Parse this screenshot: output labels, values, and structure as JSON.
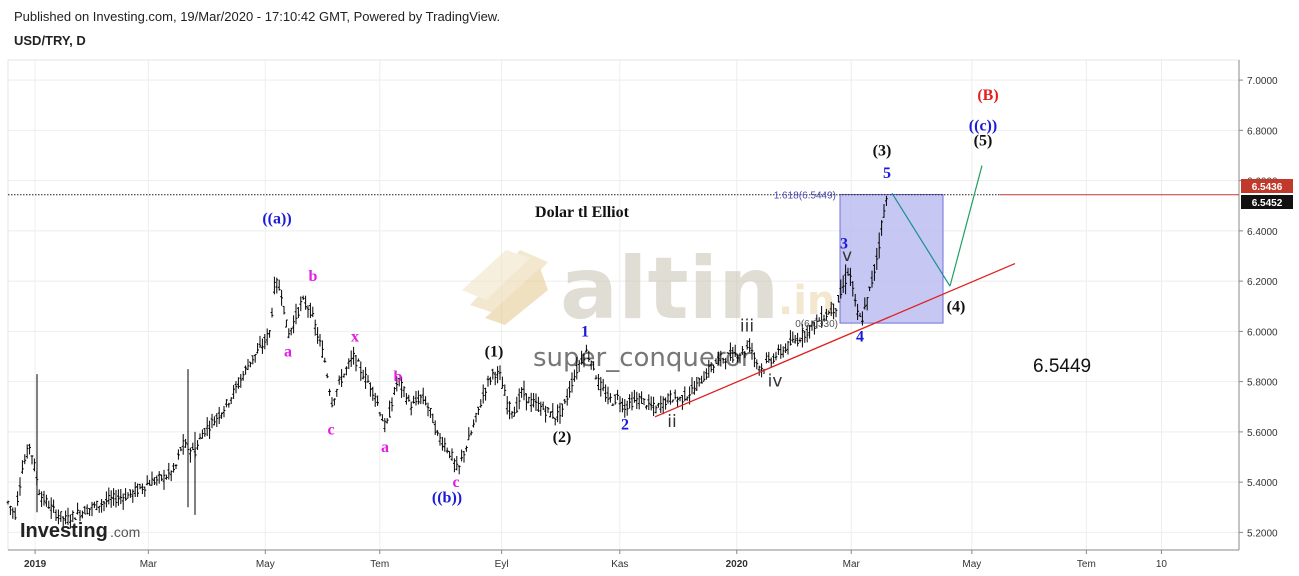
{
  "header": {
    "published": "Published on Investing.com, 19/Mar/2020 - 17:10:42 GMT, Powered by TradingView.",
    "symbol": "USD/TRY, D"
  },
  "branding": {
    "logo_bold": "Investing",
    "logo_suffix": ".com",
    "watermark_main": "altin",
    "watermark_suffix": ".in",
    "watermark_user": "super_conqueror"
  },
  "price_tags": {
    "line_price": "6.5436",
    "last_price": "6.5452",
    "line_color": "#c0392b",
    "last_color": "#111111"
  },
  "chart_data": {
    "type": "candlestick",
    "title": "Dolar tl Elliot",
    "x_ticks": [
      "2019",
      "Mar",
      "May",
      "Tem",
      "Eyl",
      "Kas",
      "2020",
      "Mar",
      "May",
      "Tem",
      "10"
    ],
    "y_ticks": [
      "7.0000",
      "6.8000",
      "6.6000",
      "6.4000",
      "6.2000",
      "6.0000",
      "5.8000",
      "5.6000",
      "5.4000",
      "5.2000"
    ],
    "ylim": [
      5.13,
      7.08
    ],
    "fib_label": "1.618(6.5449)",
    "fib_zero_label": "0(6.0330)",
    "target_value": "6.5449",
    "waypoints": [
      [
        0,
        5.33
      ],
      [
        8,
        5.32
      ],
      [
        15,
        5.27
      ],
      [
        22,
        5.45
      ],
      [
        30,
        5.55
      ],
      [
        40,
        5.35
      ],
      [
        55,
        5.28
      ],
      [
        66,
        5.25
      ],
      [
        80,
        5.28
      ],
      [
        92,
        5.3
      ],
      [
        110,
        5.33
      ],
      [
        130,
        5.35
      ],
      [
        150,
        5.4
      ],
      [
        165,
        5.42
      ],
      [
        175,
        5.45
      ],
      [
        182,
        5.55
      ],
      [
        195,
        5.52
      ],
      [
        203,
        5.6
      ],
      [
        215,
        5.65
      ],
      [
        225,
        5.7
      ],
      [
        237,
        5.78
      ],
      [
        250,
        5.88
      ],
      [
        262,
        5.94
      ],
      [
        270,
        6.0
      ],
      [
        275,
        6.2
      ],
      [
        282,
        6.15
      ],
      [
        288,
        5.98
      ],
      [
        296,
        6.06
      ],
      [
        302,
        6.12
      ],
      [
        310,
        6.09
      ],
      [
        318,
        5.98
      ],
      [
        325,
        5.88
      ],
      [
        332,
        5.72
      ],
      [
        340,
        5.8
      ],
      [
        348,
        5.86
      ],
      [
        354,
        5.9
      ],
      [
        360,
        5.85
      ],
      [
        368,
        5.8
      ],
      [
        375,
        5.75
      ],
      [
        381,
        5.67
      ],
      [
        386,
        5.61
      ],
      [
        392,
        5.72
      ],
      [
        398,
        5.81
      ],
      [
        405,
        5.75
      ],
      [
        412,
        5.7
      ],
      [
        420,
        5.74
      ],
      [
        426,
        5.72
      ],
      [
        432,
        5.66
      ],
      [
        438,
        5.58
      ],
      [
        445,
        5.55
      ],
      [
        452,
        5.5
      ],
      [
        458,
        5.44
      ],
      [
        464,
        5.52
      ],
      [
        470,
        5.58
      ],
      [
        478,
        5.68
      ],
      [
        486,
        5.78
      ],
      [
        494,
        5.84
      ],
      [
        500,
        5.82
      ],
      [
        508,
        5.7
      ],
      [
        515,
        5.68
      ],
      [
        522,
        5.76
      ],
      [
        530,
        5.72
      ],
      [
        540,
        5.7
      ],
      [
        548,
        5.68
      ],
      [
        556,
        5.66
      ],
      [
        564,
        5.7
      ],
      [
        572,
        5.8
      ],
      [
        580,
        5.88
      ],
      [
        586,
        5.92
      ],
      [
        592,
        5.88
      ],
      [
        598,
        5.8
      ],
      [
        605,
        5.75
      ],
      [
        612,
        5.72
      ],
      [
        618,
        5.74
      ],
      [
        624,
        5.7
      ],
      [
        632,
        5.72
      ],
      [
        640,
        5.73
      ],
      [
        648,
        5.71
      ],
      [
        656,
        5.69
      ],
      [
        664,
        5.72
      ],
      [
        672,
        5.74
      ],
      [
        680,
        5.73
      ],
      [
        688,
        5.75
      ],
      [
        696,
        5.78
      ],
      [
        704,
        5.82
      ],
      [
        712,
        5.86
      ],
      [
        720,
        5.89
      ],
      [
        728,
        5.9
      ],
      [
        736,
        5.91
      ],
      [
        744,
        5.92
      ],
      [
        750,
        5.95
      ],
      [
        756,
        5.88
      ],
      [
        762,
        5.85
      ],
      [
        768,
        5.88
      ],
      [
        775,
        5.9
      ],
      [
        782,
        5.92
      ],
      [
        790,
        5.95
      ],
      [
        798,
        5.97
      ],
      [
        806,
        6.0
      ],
      [
        812,
        6.02
      ],
      [
        818,
        6.04
      ],
      [
        824,
        6.06
      ],
      [
        830,
        6.08
      ],
      [
        836,
        6.1
      ],
      [
        842,
        6.16
      ],
      [
        848,
        6.24
      ],
      [
        852,
        6.2
      ],
      [
        856,
        6.08
      ],
      [
        861,
        6.04
      ],
      [
        866,
        6.1
      ],
      [
        872,
        6.2
      ],
      [
        878,
        6.32
      ],
      [
        883,
        6.46
      ],
      [
        887,
        6.53
      ]
    ],
    "wave_labels": [
      {
        "text": "((a))",
        "x": 277,
        "y": 6.43,
        "color": "#1a1adb"
      },
      {
        "text": "a",
        "x": 288,
        "y": 5.9,
        "color": "#e020e0"
      },
      {
        "text": "b",
        "x": 313,
        "y": 6.2,
        "color": "#e020e0"
      },
      {
        "text": "x",
        "x": 355,
        "y": 5.96,
        "color": "#e020e0"
      },
      {
        "text": "c",
        "x": 331,
        "y": 5.59,
        "color": "#e020e0"
      },
      {
        "text": "b",
        "x": 398,
        "y": 5.8,
        "color": "#e020e0"
      },
      {
        "text": "a",
        "x": 385,
        "y": 5.52,
        "color": "#e020e0"
      },
      {
        "text": "c",
        "x": 456,
        "y": 5.38,
        "color": "#e020e0"
      },
      {
        "text": "((b))",
        "x": 447,
        "y": 5.32,
        "color": "#1a1adb"
      },
      {
        "text": "(1)",
        "x": 494,
        "y": 5.9,
        "color": "#111111"
      },
      {
        "text": "(2)",
        "x": 562,
        "y": 5.56,
        "color": "#111111"
      },
      {
        "text": "1",
        "x": 585,
        "y": 5.98,
        "color": "#1a1adb"
      },
      {
        "text": "2",
        "x": 625,
        "y": 5.61,
        "color": "#1a1adb"
      },
      {
        "text": "ii",
        "x": 672,
        "y": 5.62,
        "color": "#333333"
      },
      {
        "text": "iii",
        "x": 747,
        "y": 6.0,
        "color": "#333333"
      },
      {
        "text": "iv",
        "x": 775,
        "y": 5.78,
        "color": "#333333"
      },
      {
        "text": "4",
        "x": 860,
        "y": 5.96,
        "color": "#1a1adb"
      },
      {
        "text": "3",
        "x": 844,
        "y": 6.33,
        "color": "#1a1adb"
      },
      {
        "text": "v",
        "x": 847,
        "y": 6.28,
        "color": "#333333"
      },
      {
        "text": "5",
        "x": 887,
        "y": 6.61,
        "color": "#1a1adb"
      },
      {
        "text": "(3)",
        "x": 882,
        "y": 6.7,
        "color": "#111111"
      },
      {
        "text": "(4)",
        "x": 956,
        "y": 6.08,
        "color": "#111111"
      },
      {
        "text": "(5)",
        "x": 983,
        "y": 6.74,
        "color": "#111111"
      },
      {
        "text": "((c))",
        "x": 983,
        "y": 6.8,
        "color": "#1a1adb"
      },
      {
        "text": "(B)",
        "x": 988,
        "y": 6.92,
        "color": "#e02020"
      }
    ],
    "trendline": {
      "x1": 655,
      "y1": 5.66,
      "x2": 1015,
      "y2": 6.27,
      "color": "#e02020"
    },
    "projection": [
      {
        "x1": 892,
        "y1": 6.55,
        "x2": 950,
        "y2": 6.18,
        "color": "#1a8f8f"
      },
      {
        "x1": 950,
        "y1": 6.18,
        "x2": 982,
        "y2": 6.66,
        "color": "#20a060"
      }
    ],
    "fib_box": {
      "x1": 840,
      "x2": 943,
      "y_top": 6.5449,
      "y_bottom": 6.033
    },
    "grid": true,
    "hline_value": 6.5436
  }
}
